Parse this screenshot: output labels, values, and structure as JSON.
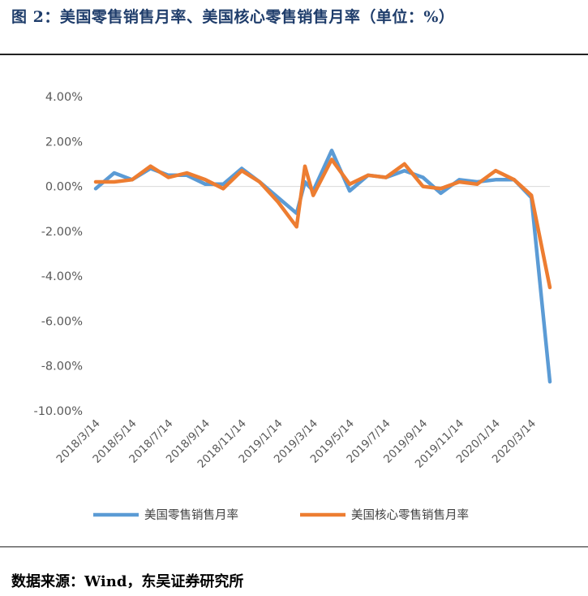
{
  "title": "图 2：美国零售销售月率、美国核心零售销售月率（单位：%）",
  "source": "数据来源：Wind，东吴证券研究所",
  "chart_data": {
    "type": "line",
    "y_tick_labels": [
      "4.00%",
      "2.00%",
      "0.00%",
      "-2.00%",
      "-4.00%",
      "-6.00%",
      "-8.00%",
      "-10.00%"
    ],
    "ylim": [
      -10,
      4
    ],
    "x_tick_labels": [
      "2018/3/14",
      "2018/5/14",
      "2018/7/14",
      "2018/9/14",
      "2018/11/14",
      "2019/1/14",
      "2019/3/14",
      "2019/5/14",
      "2019/7/14",
      "2019/9/14",
      "2019/11/14",
      "2020/1/14",
      "2020/3/14"
    ],
    "xlim": [
      "2018/3/14",
      "2020/4/14"
    ],
    "grid": false,
    "legend_position": "bottom",
    "series": [
      {
        "name": "美国零售销售月率",
        "color": "#5b9bd5",
        "points": [
          [
            "2018/3/14",
            -0.1
          ],
          [
            "2018/4/14",
            0.6
          ],
          [
            "2018/5/14",
            0.3
          ],
          [
            "2018/6/14",
            0.8
          ],
          [
            "2018/7/14",
            0.5
          ],
          [
            "2018/8/14",
            0.5
          ],
          [
            "2018/9/14",
            0.1
          ],
          [
            "2018/10/14",
            0.1
          ],
          [
            "2018/11/14",
            0.8
          ],
          [
            "2018/12/14",
            0.2
          ],
          [
            "2019/1/14",
            -0.5
          ],
          [
            "2019/2/14",
            -1.2
          ],
          [
            "2019/2/28",
            0.2
          ],
          [
            "2019/3/14",
            -0.2
          ],
          [
            "2019/4/14",
            1.6
          ],
          [
            "2019/5/14",
            -0.2
          ],
          [
            "2019/6/14",
            0.5
          ],
          [
            "2019/7/14",
            0.4
          ],
          [
            "2019/8/14",
            0.7
          ],
          [
            "2019/9/14",
            0.4
          ],
          [
            "2019/10/14",
            -0.3
          ],
          [
            "2019/11/14",
            0.3
          ],
          [
            "2019/12/14",
            0.2
          ],
          [
            "2020/1/14",
            0.3
          ],
          [
            "2020/2/14",
            0.3
          ],
          [
            "2020/3/14",
            -0.5
          ],
          [
            "2020/4/14",
            -8.7
          ]
        ]
      },
      {
        "name": "美国核心零售销售月率",
        "color": "#ed7d31",
        "points": [
          [
            "2018/3/14",
            0.2
          ],
          [
            "2018/4/14",
            0.2
          ],
          [
            "2018/5/14",
            0.3
          ],
          [
            "2018/6/14",
            0.9
          ],
          [
            "2018/7/14",
            0.4
          ],
          [
            "2018/8/14",
            0.6
          ],
          [
            "2018/9/14",
            0.3
          ],
          [
            "2018/10/14",
            -0.1
          ],
          [
            "2018/11/14",
            0.7
          ],
          [
            "2018/12/14",
            0.2
          ],
          [
            "2019/1/14",
            -0.7
          ],
          [
            "2019/2/14",
            -1.8
          ],
          [
            "2019/2/28",
            0.9
          ],
          [
            "2019/3/14",
            -0.4
          ],
          [
            "2019/4/14",
            1.2
          ],
          [
            "2019/5/14",
            0.1
          ],
          [
            "2019/6/14",
            0.5
          ],
          [
            "2019/7/14",
            0.4
          ],
          [
            "2019/8/14",
            1.0
          ],
          [
            "2019/9/14",
            0.0
          ],
          [
            "2019/10/14",
            -0.1
          ],
          [
            "2019/11/14",
            0.2
          ],
          [
            "2019/12/14",
            0.1
          ],
          [
            "2020/1/14",
            0.7
          ],
          [
            "2020/2/14",
            0.3
          ],
          [
            "2020/3/14",
            -0.4
          ],
          [
            "2020/4/14",
            -4.5
          ]
        ]
      }
    ]
  }
}
